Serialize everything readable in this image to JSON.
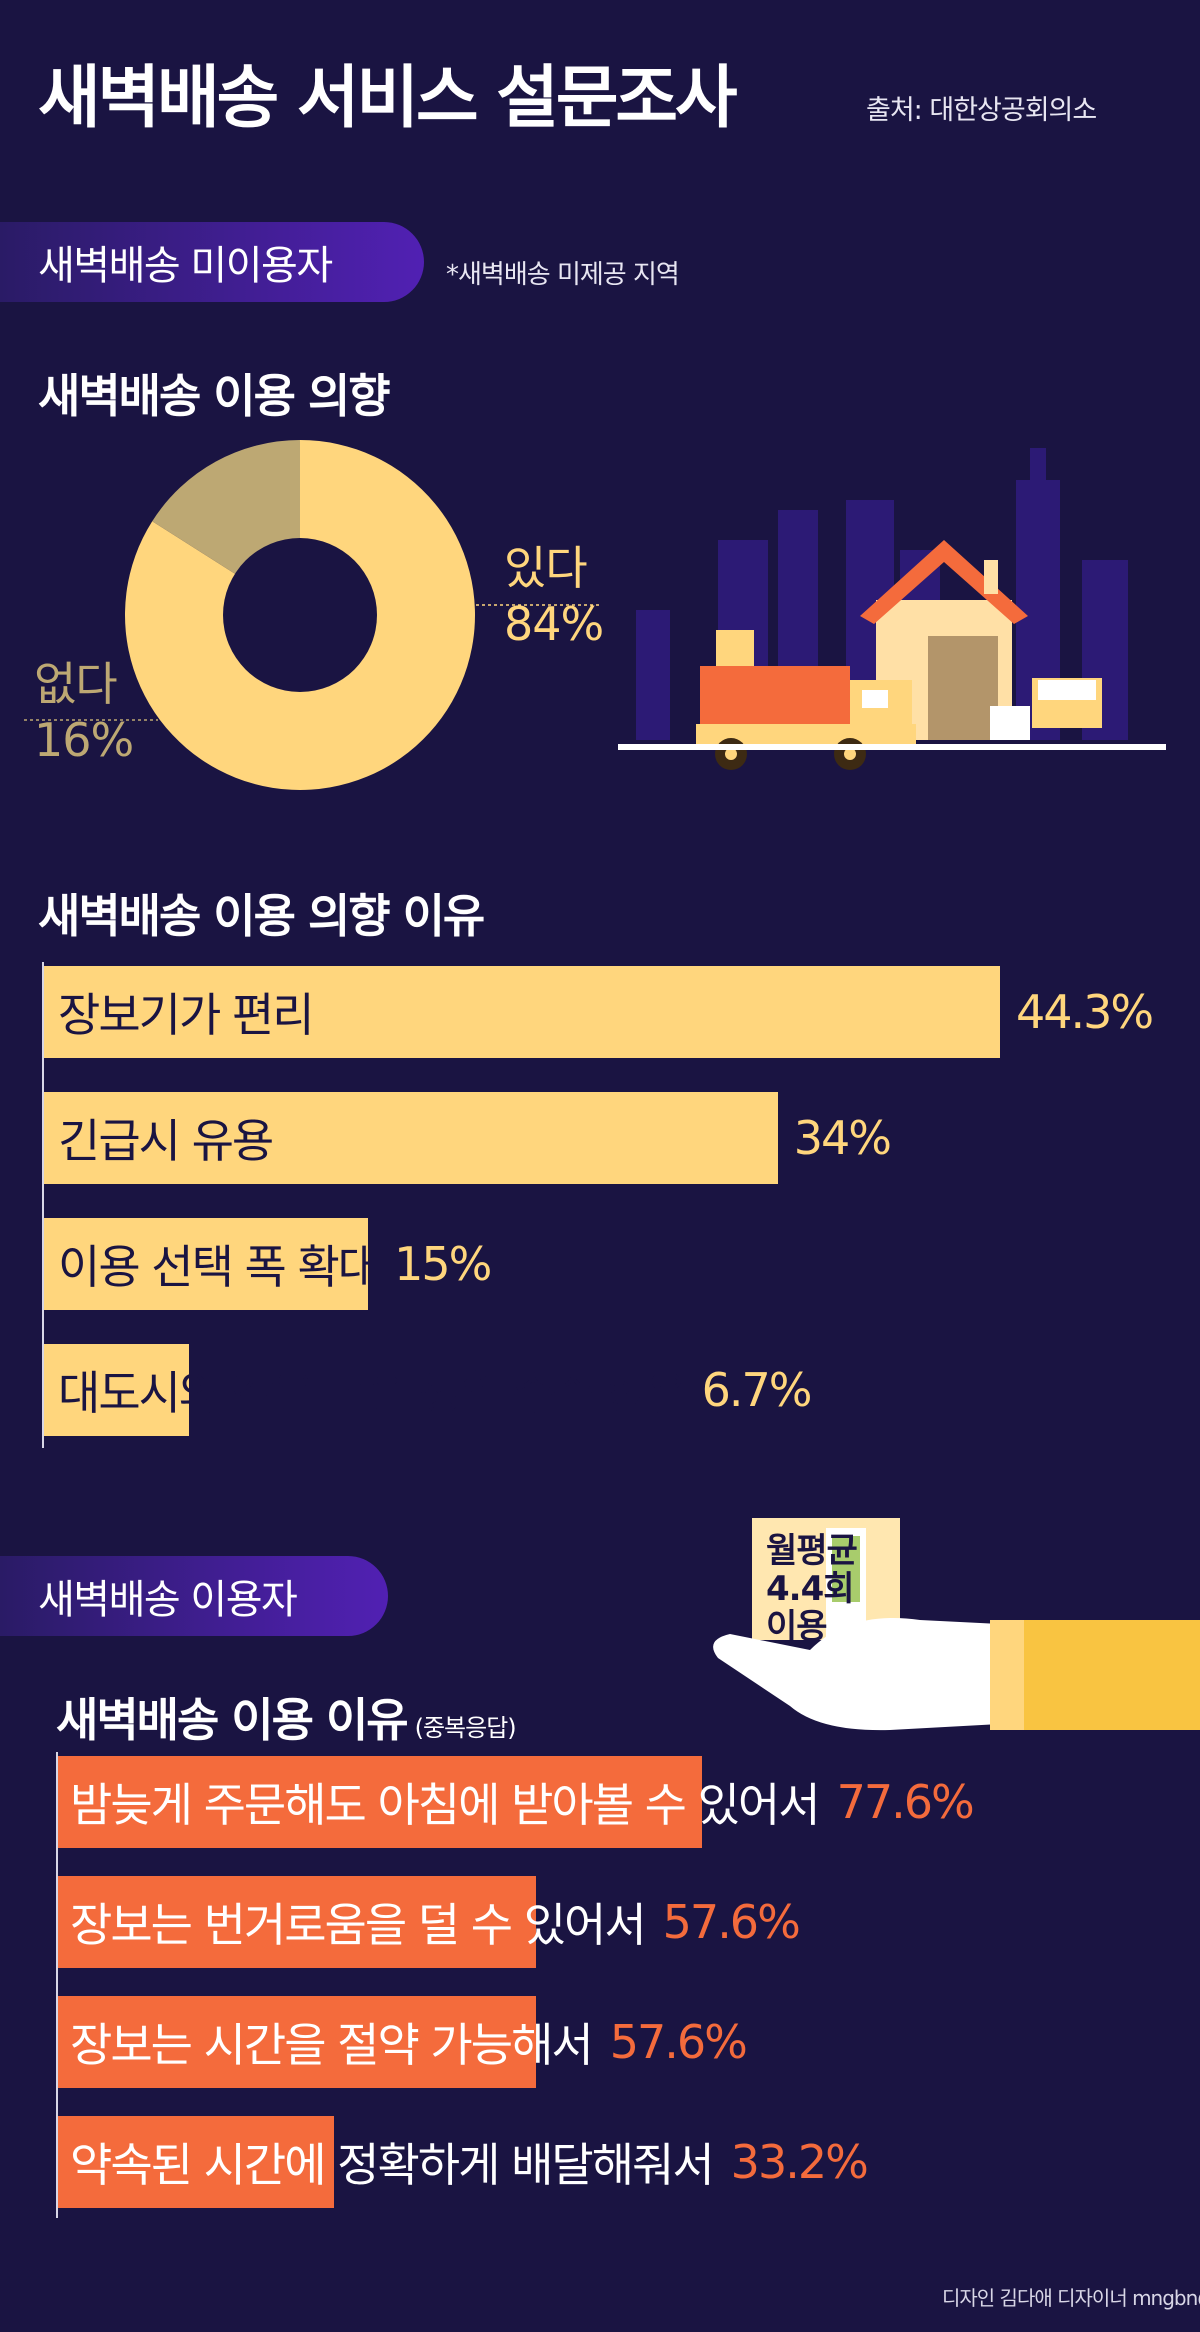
{
  "header": {
    "title": "새벽배송 서비스 설문조사",
    "source": "출처: 대한상공회의소"
  },
  "non_users": {
    "pill": "새벽배송 미이용자",
    "note": "*새벽배송 미제공 지역",
    "intent_title": "새벽배송 이용 의향",
    "yes_label": "있다",
    "yes_value": "84%",
    "no_label": "없다",
    "no_value": "16%",
    "reasons_title": "새벽배송 이용 의향 이유",
    "reasons": [
      {
        "label": "장보기가 편리",
        "value": "44.3%"
      },
      {
        "label": "긴급시 유용",
        "value": "34%"
      },
      {
        "label": "이용 선택 폭 확대",
        "value": "15%"
      },
      {
        "label": "대도시와 같은 높은 생활 수준 향유",
        "value": "6.7%"
      }
    ]
  },
  "users": {
    "pill": "새벽배송 이용자",
    "monthly": [
      "월평균",
      "4.4회",
      "이용"
    ],
    "reasons_title": "새벽배송 이용 이유",
    "reasons_note": "(중복응답)",
    "reasons": [
      {
        "label": "밤늦게 주문해도 아침에 받아볼 수 있어서",
        "value": "77.6%"
      },
      {
        "label": "장보는 번거로움을 덜 수 있어서",
        "value": "57.6%"
      },
      {
        "label": "장보는 시간을 절약 가능해서",
        "value": "57.6%"
      },
      {
        "label": "약속된 시간에 정확하게 배달해줘서",
        "value": "33.2%"
      }
    ]
  },
  "credit": "디자인 김다애 디자이너 mngbn@",
  "colors": {
    "background": "#1a1442",
    "yellow": "#ffd67d",
    "orange": "#f46b3c",
    "pill_gradient": [
      "#2a1b66",
      "#5120b3"
    ],
    "donut_no": "#bda873"
  },
  "chart_data": [
    {
      "type": "pie",
      "title": "새벽배송 이용 의향",
      "categories": [
        "있다",
        "없다"
      ],
      "values": [
        84,
        16
      ],
      "style": "donut"
    },
    {
      "type": "bar",
      "orientation": "horizontal",
      "title": "새벽배송 이용 의향 이유",
      "categories": [
        "장보기가 편리",
        "긴급시 유용",
        "이용 선택 폭 확대",
        "대도시와 같은 높은 생활 수준 향유"
      ],
      "values": [
        44.3,
        34,
        15,
        6.7
      ],
      "unit": "%"
    },
    {
      "type": "bar",
      "orientation": "horizontal",
      "title": "새벽배송 이용 이유",
      "subtitle": "(중복응답)",
      "categories": [
        "밤늦게 주문해도 아침에 받아볼 수 있어서",
        "장보는 번거로움을 덜 수 있어서",
        "장보는 시간을 절약 가능해서",
        "약속된 시간에 정확하게 배달해줘서"
      ],
      "values": [
        77.6,
        57.6,
        57.6,
        33.2
      ],
      "unit": "%"
    }
  ]
}
